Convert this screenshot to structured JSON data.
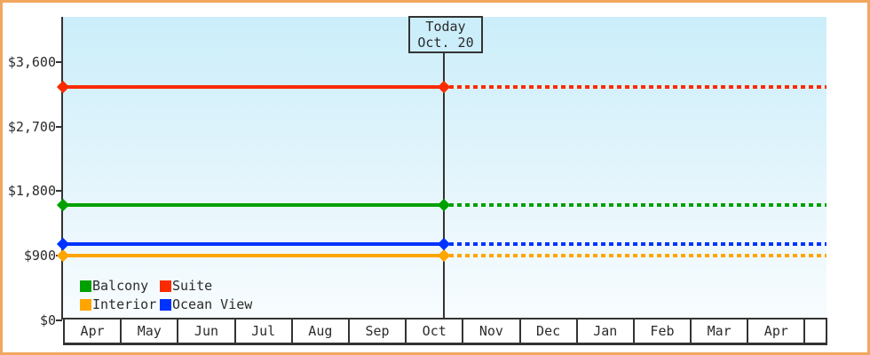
{
  "chart_data": {
    "type": "line",
    "title": "",
    "y_axis": {
      "ticks": [
        {
          "label": "$3,600",
          "value": 3600
        },
        {
          "label": "$2,700",
          "value": 2700
        },
        {
          "label": "$1,800",
          "value": 1800
        },
        {
          "label": "$900",
          "value": 900
        },
        {
          "label": "$0",
          "value": 0
        }
      ],
      "ylim": [
        0,
        4200
      ]
    },
    "x_axis": {
      "months": [
        "Apr",
        "May",
        "Jun",
        "Jul",
        "Aug",
        "Sep",
        "Oct",
        "Nov",
        "Dec",
        "Jan",
        "Feb",
        "Mar",
        "Apr"
      ],
      "trailing_empty_cell": true
    },
    "today_marker": {
      "line1": "Today",
      "line2": "Oct. 20",
      "month": "Oct",
      "day": 20
    },
    "series": [
      {
        "name": "Balcony",
        "color": "#00a000",
        "value": 1600
      },
      {
        "name": "Suite",
        "color": "#fa2b00",
        "value": 3250
      },
      {
        "name": "Interior",
        "color": "#ffa500",
        "value": 900
      },
      {
        "name": "Ocean View",
        "color": "#0033ff",
        "value": 1060
      }
    ],
    "line_style": {
      "before_today": "solid",
      "after_today": "dashed",
      "marker": "diamond"
    },
    "legend": {
      "items": [
        "Balcony",
        "Suite",
        "Interior",
        "Ocean View"
      ],
      "columns": 2,
      "position": "bottom-left"
    }
  },
  "style": {
    "frame_border_color": "#f2a75f",
    "axis_color": "#333333",
    "plot_bg_top": "#cbeefa",
    "plot_bg_bottom": "#f8fcfe",
    "text_color": "#2b2b2b"
  }
}
